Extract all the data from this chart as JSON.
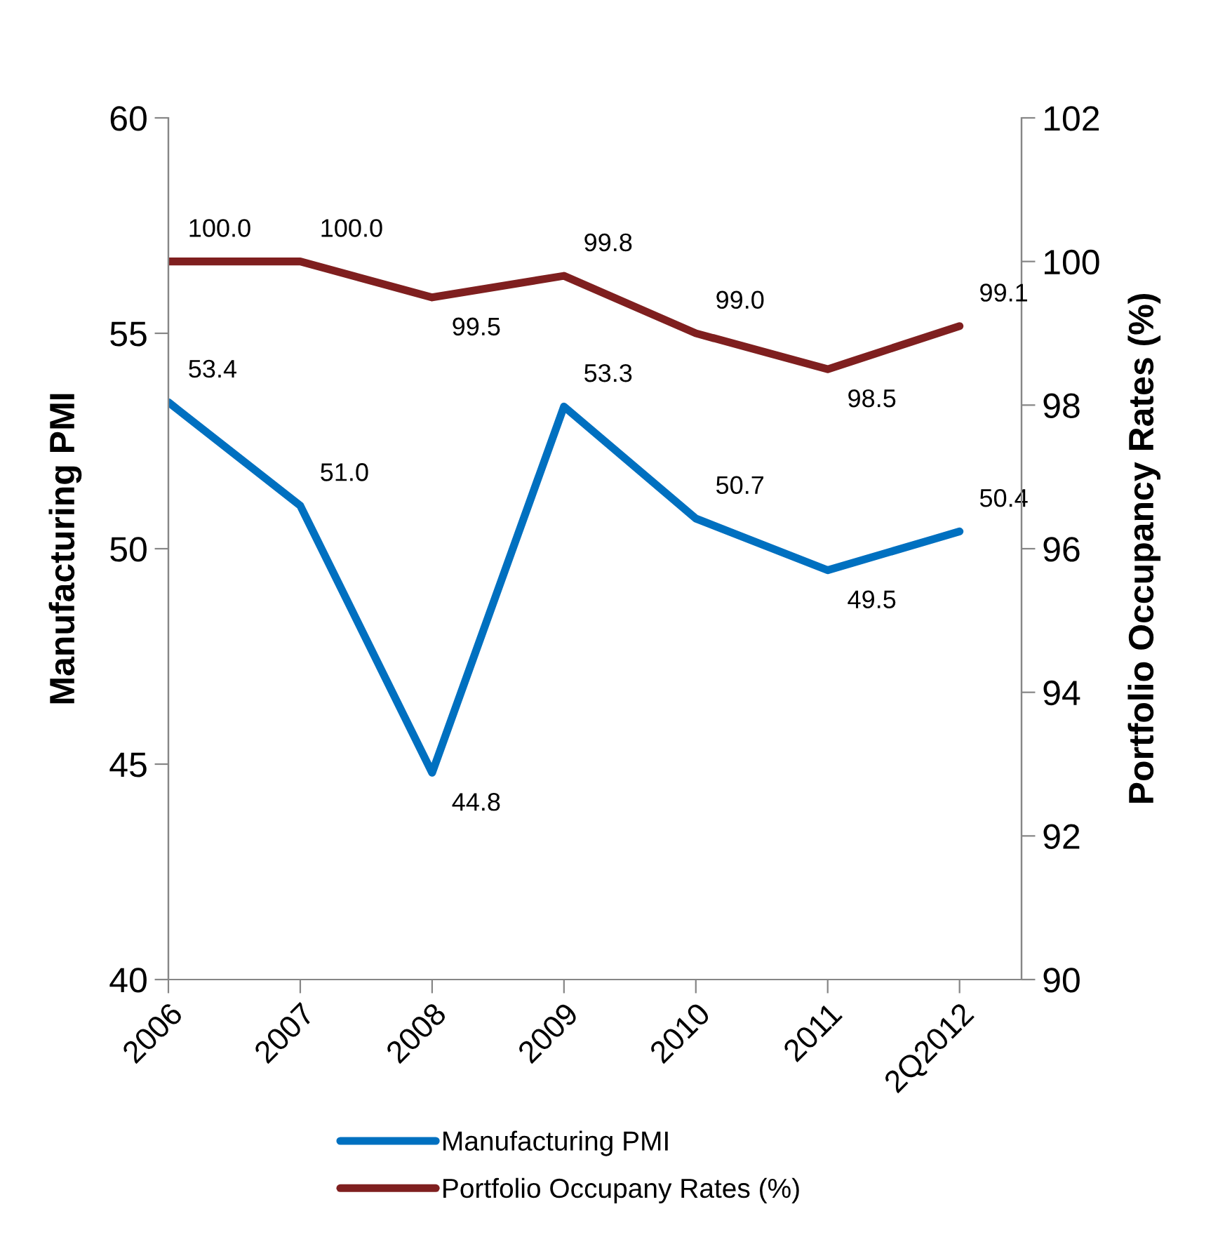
{
  "chart_data": {
    "type": "line",
    "ylabel": "Manufacturing PMI",
    "y2label": "Portfolio Occupancy Rates (%)",
    "categories": [
      "2006",
      "2007",
      "2008",
      "2009",
      "2010",
      "2011",
      "2Q2012"
    ],
    "series": [
      {
        "name": "Manufacturing PMI",
        "color": "#0070c0",
        "values": [
          53.4,
          51.0,
          44.8,
          53.3,
          50.7,
          49.5,
          50.4
        ],
        "value_labels": [
          "53.4",
          "51.0",
          "44.8",
          "53.3",
          "50.7",
          "49.5",
          "50.4"
        ]
      },
      {
        "name": "Portfolio Occupany Rates (%)",
        "color": "#7f1f1f",
        "axis": "y2",
        "values": [
          100.0,
          100.0,
          99.5,
          99.8,
          99.0,
          98.5,
          99.1
        ],
        "value_labels": [
          "100.0",
          "100.0",
          "99.5",
          "99.8",
          "99.0",
          "98.5",
          "99.1"
        ]
      }
    ],
    "ylim": [
      40,
      60
    ],
    "yticks": [
      40,
      45,
      50,
      55,
      60
    ],
    "y2lim": [
      90,
      102
    ],
    "y2ticks": [
      90,
      92,
      94,
      96,
      98,
      100,
      102
    ],
    "grid": false,
    "legend": "bottom",
    "marker": "none",
    "line_style": "solid"
  }
}
